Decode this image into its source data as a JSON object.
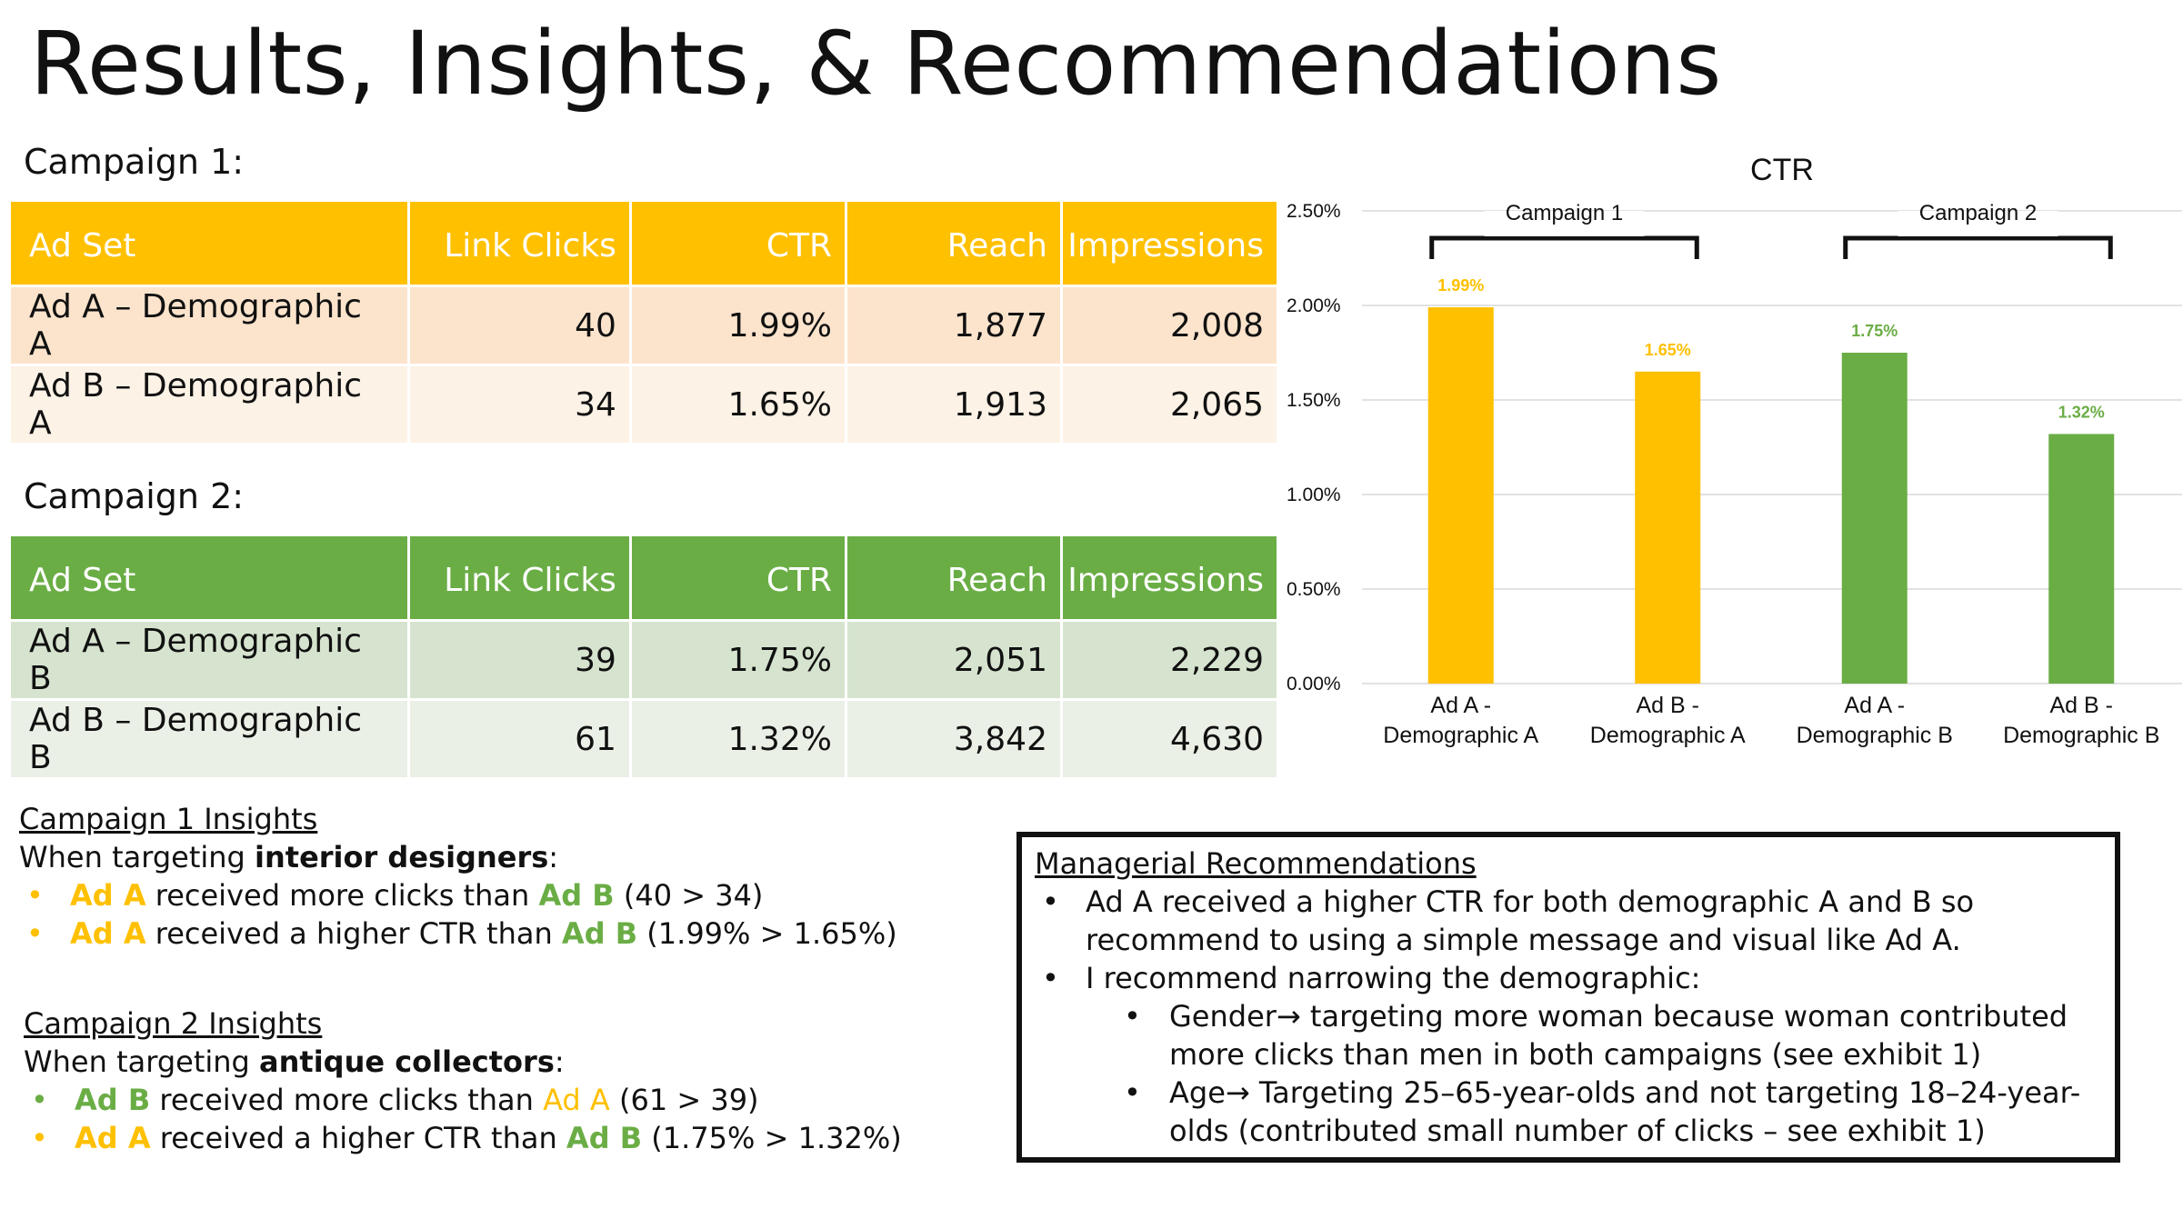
{
  "title": "Results, Insights, & Recommendations",
  "campaign1": {
    "label": "Campaign 1:",
    "headers": [
      "Ad Set",
      "Link Clicks",
      "CTR",
      "Reach",
      "Impressions"
    ],
    "rows": [
      [
        "Ad A – Demographic A",
        "40",
        "1.99%",
        "1,877",
        "2,008"
      ],
      [
        "Ad B – Demographic A",
        "34",
        "1.65%",
        "1,913",
        "2,065"
      ]
    ]
  },
  "campaign2": {
    "label": "Campaign 2:",
    "headers": [
      "Ad Set",
      "Link Clicks",
      "CTR",
      "Reach",
      "Impressions"
    ],
    "rows": [
      [
        "Ad A – Demographic B",
        "39",
        "1.75%",
        "2,051",
        "2,229"
      ],
      [
        "Ad B – Demographic B",
        "61",
        "1.32%",
        "3,842",
        "4,630"
      ]
    ]
  },
  "insights1": {
    "heading": "Campaign 1 Insights",
    "intro_pre": "When targeting ",
    "intro_bold": "interior designers",
    "intro_post": ":",
    "bullet1": {
      "a": "Ad A",
      "mid": " received more clicks than ",
      "b": "Ad B",
      "end": " (40 > 34)"
    },
    "bullet2": {
      "a": "Ad A",
      "mid": " received a higher CTR than ",
      "b": "Ad B",
      "end": " (1.99% > 1.65%)"
    }
  },
  "insights2": {
    "heading": "Campaign 2 Insights",
    "intro_pre": "When targeting ",
    "intro_bold": "antique collectors",
    "intro_post": ":",
    "bullet1": {
      "a": "Ad B",
      "mid": " received more clicks than ",
      "b": "Ad A",
      "end": " (61 > 39)"
    },
    "bullet2": {
      "a": "Ad A",
      "mid": " received a higher CTR than ",
      "b": "Ad B",
      "end": " (1.75% > 1.32%)"
    }
  },
  "recommendations": {
    "heading": "Managerial Recommendations",
    "item1_line1": "Ad A received a higher CTR for both demographic A and B so",
    "item1_line2": "recommend to using a simple message and visual like Ad A.",
    "item2": "I recommend narrowing the demographic:",
    "sub1_line1": "Gender→ targeting more woman because woman contributed",
    "sub1_line2": "more clicks than men in both campaigns (see exhibit 1)",
    "sub2_line1": "Age→ Targeting 25–65-year-olds and not targeting 18–24-year-",
    "sub2_line2": "olds (contributed small number of clicks – see exhibit 1)"
  },
  "colors": {
    "campaign1": "#FFC000",
    "campaign2": "#6AAD45"
  },
  "chart_data": {
    "type": "bar",
    "title": "CTR",
    "categories": [
      [
        "Ad A -",
        "Demographic A"
      ],
      [
        "Ad B -",
        "Demographic A"
      ],
      [
        "Ad A -",
        "Demographic B"
      ],
      [
        "Ad B -",
        "Demographic B"
      ]
    ],
    "values": [
      1.99,
      1.65,
      1.75,
      1.32
    ],
    "data_labels": [
      "1.99%",
      "1.65%",
      "1.75%",
      "1.32%"
    ],
    "bar_colors": [
      "#FFC000",
      "#FFC000",
      "#6AAD45",
      "#6AAD45"
    ],
    "ylim": [
      0,
      2.5
    ],
    "yticks": [
      "0.00%",
      "0.50%",
      "1.00%",
      "1.50%",
      "2.00%",
      "2.50%"
    ],
    "grid": true,
    "groups": [
      "Campaign 1",
      "Campaign 2"
    ]
  }
}
